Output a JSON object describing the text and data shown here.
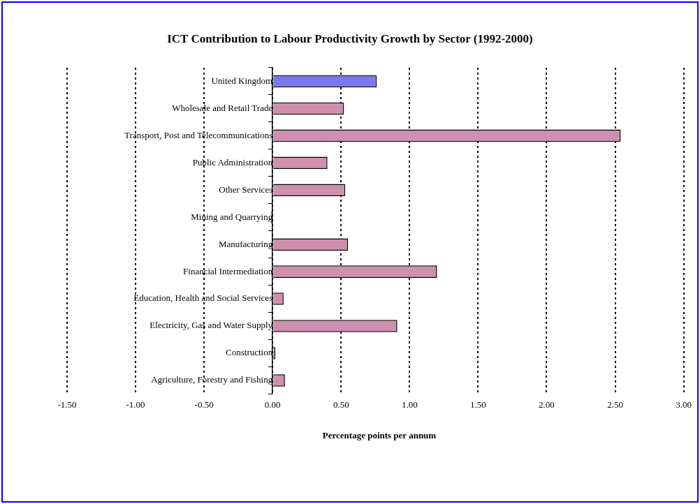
{
  "chart_data": {
    "type": "bar",
    "orientation": "horizontal",
    "title": "ICT Contribution to Labour Productivity Growth by Sector (1992-2000)",
    "xlabel": "Percentage points per annum",
    "categories": [
      "United Kingdom",
      "Wholesale and Retail Trade",
      "Transport, Post and Telecommunications",
      "Public Administration",
      "Other Services",
      "Mining and Quarrying",
      "Manufacturing",
      "Financial Intermediation",
      "Education, Health and Social Services",
      "Electricity, Gas and Water Supply",
      "Construction",
      "Agriculture, Forestry and Fishing"
    ],
    "values": [
      0.76,
      0.52,
      2.54,
      0.4,
      0.53,
      -0.01,
      0.55,
      1.2,
      0.08,
      0.91,
      0.02,
      0.09
    ],
    "colors": [
      "#7878f0",
      "#cf8fae",
      "#cf8fae",
      "#cf8fae",
      "#cf8fae",
      "#cf8fae",
      "#cf8fae",
      "#cf8fae",
      "#cf8fae",
      "#cf8fae",
      "#cf8fae",
      "#cf8fae"
    ],
    "xlim": [
      -1.5,
      3
    ],
    "xticks": [
      {
        "value": -1.5,
        "label": "-1.50"
      },
      {
        "value": -1,
        "label": "-1.00"
      },
      {
        "value": -0.5,
        "label": "-0.50"
      },
      {
        "value": 0,
        "label": "0.00"
      },
      {
        "value": 0.5,
        "label": "0.50"
      },
      {
        "value": 1,
        "label": "1.00"
      },
      {
        "value": 1.5,
        "label": "1.50"
      },
      {
        "value": 2,
        "label": "2.00"
      },
      {
        "value": 2.5,
        "label": "2.50"
      },
      {
        "value": 3,
        "label": "3.00"
      }
    ],
    "grid": "x",
    "legend": false
  }
}
